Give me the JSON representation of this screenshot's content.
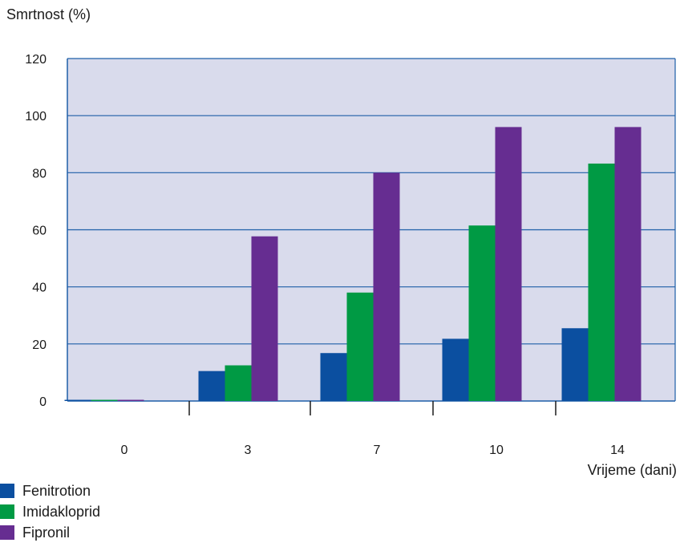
{
  "chart_data": {
    "type": "bar",
    "ylabel": "Smrtnost (%)",
    "xlabel": "Vrijeme (dani)",
    "categories": [
      "0",
      "3",
      "7",
      "10",
      "14"
    ],
    "series": [
      {
        "name": "Fenitrotion",
        "color": "#0b4fa0",
        "values": [
          0,
          10.5,
          16.8,
          21.8,
          25.5
        ]
      },
      {
        "name": "Imidakloprid",
        "color": "#009a44",
        "values": [
          0,
          12.5,
          38.0,
          61.5,
          83.2
        ]
      },
      {
        "name": "Fipronil",
        "color": "#662d91",
        "values": [
          0,
          57.7,
          80.0,
          96.0,
          96.0
        ]
      }
    ],
    "ylim": [
      0,
      120
    ],
    "yticks": [
      "0",
      "20",
      "40",
      "60",
      "80",
      "100",
      "120"
    ],
    "grid": true,
    "legend_position": "bottom-left",
    "plot_background": "#d9dbec",
    "grid_color": "#1f5fa8"
  }
}
